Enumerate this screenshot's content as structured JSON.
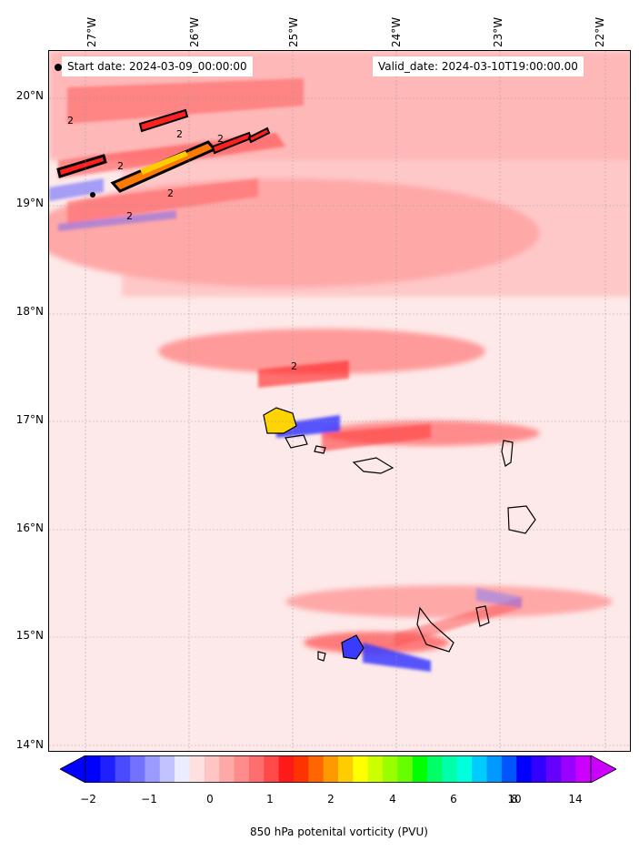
{
  "map": {
    "start_date": "Start date: 2024-03-09_00:00:00",
    "valid_date": "Valid_date: 2024-03-10T19:00:00.00",
    "lon_labels": [
      "27°W",
      "26°W",
      "25°W",
      "24°W",
      "23°W",
      "22°W"
    ],
    "lat_labels": [
      "20°N",
      "19°N",
      "18°N",
      "17°N",
      "16°N",
      "15°N",
      "14°N"
    ],
    "contour_label": "2",
    "colors": {
      "background": "#fde9e9",
      "light_red": "#ffb3b3",
      "mid_red": "#ff7a7a",
      "strong_red": "#ff2020",
      "negative_blue": "#3b3bff",
      "light_blue": "#dcdcff"
    }
  },
  "colorbar": {
    "label": "850 hPa potenital vorticity (PVU)",
    "tick_labels": [
      "−2",
      "−1",
      "0",
      "1",
      "2",
      "4",
      "6",
      "8",
      "10",
      "14"
    ],
    "colors": [
      "#0000ff",
      "#2020ff",
      "#4a4aff",
      "#7272ff",
      "#9a9aff",
      "#c2c2ff",
      "#ececff",
      "#ffe0e0",
      "#ffc4c4",
      "#ffa8a8",
      "#ff8c8c",
      "#ff6e6e",
      "#ff4a4a",
      "#ff1a1a",
      "#ff3300",
      "#ff6600",
      "#ff9900",
      "#ffcc00",
      "#ffff00",
      "#ccff00",
      "#99ff00",
      "#66ff00",
      "#00ff00",
      "#00ff66",
      "#00ffaa",
      "#00ffdd",
      "#00ccff",
      "#0099ff",
      "#0055ff",
      "#0000ff",
      "#3300ff",
      "#6600ff",
      "#9900ff",
      "#cc00ff"
    ],
    "under_color": "#0000ff",
    "over_color": "#cc00ff"
  }
}
